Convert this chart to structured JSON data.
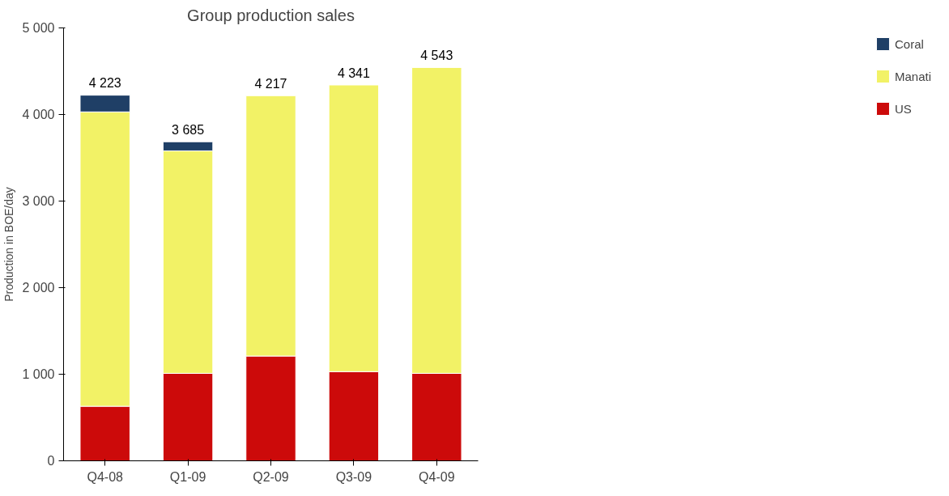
{
  "chart_data": {
    "type": "bar",
    "title": "Group production sales",
    "ylabel": "Production in BOE/day",
    "stacked": true,
    "categories": [
      "Q4-08",
      "Q1-09",
      "Q2-09",
      "Q3-09",
      "Q4-09"
    ],
    "series": [
      {
        "name": "US",
        "color": "#cc0a0a",
        "values": [
          630,
          1010,
          1210,
          1030,
          1010
        ]
      },
      {
        "name": "Manati",
        "color": "#f2f266",
        "values": [
          3400,
          2570,
          3007,
          3311,
          3533
        ]
      },
      {
        "name": "Coral",
        "color": "#1f3f66",
        "values": [
          193,
          105,
          null,
          null,
          null
        ]
      }
    ],
    "totals": [
      "4 223",
      "3 685",
      "4 217",
      "4 341",
      "4 543"
    ],
    "ylim": [
      0,
      5000
    ],
    "yticks": [
      0,
      {
        "value": 1000,
        "label": "1 000"
      },
      {
        "value": 2000,
        "label": "2 000"
      },
      {
        "value": 3000,
        "label": "3 000"
      },
      {
        "value": 4000,
        "label": "4 000"
      },
      {
        "value": 5000,
        "label": "5 000"
      }
    ],
    "grid": false,
    "legend": "right"
  }
}
